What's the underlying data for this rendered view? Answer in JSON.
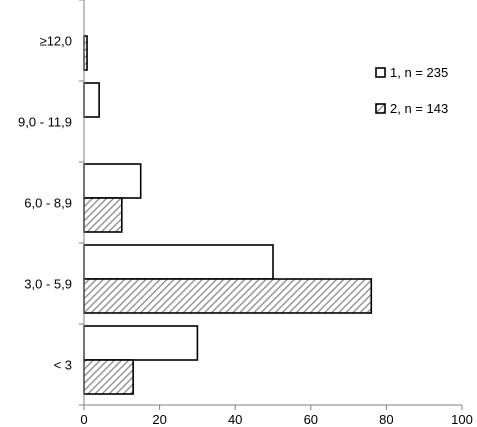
{
  "chart_data": {
    "type": "bar",
    "orientation": "horizontal",
    "categories": [
      "≥12,0",
      "9,0 - 11,9",
      "6,0 - 8,9",
      "3,0 - 5,9",
      "< 3"
    ],
    "series": [
      {
        "name": "1, n = 235",
        "values": [
          0,
          4,
          15,
          50,
          30
        ],
        "fill": "#ffffff",
        "pattern": "none"
      },
      {
        "name": "2, n = 143",
        "values": [
          0.8,
          0,
          10,
          76,
          13
        ],
        "fill": "#ffffff",
        "pattern": "diagonal-hatch"
      }
    ],
    "xticks": [
      "0",
      "20",
      "40",
      "60",
      "80",
      "100"
    ],
    "xlim": [
      0,
      100
    ],
    "title": "",
    "xlabel": "",
    "ylabel": "",
    "grid": false,
    "legend_position": "right",
    "colors": {
      "stroke": "#000000",
      "hatch": "#8a8a8a",
      "axis": "#808080"
    }
  }
}
